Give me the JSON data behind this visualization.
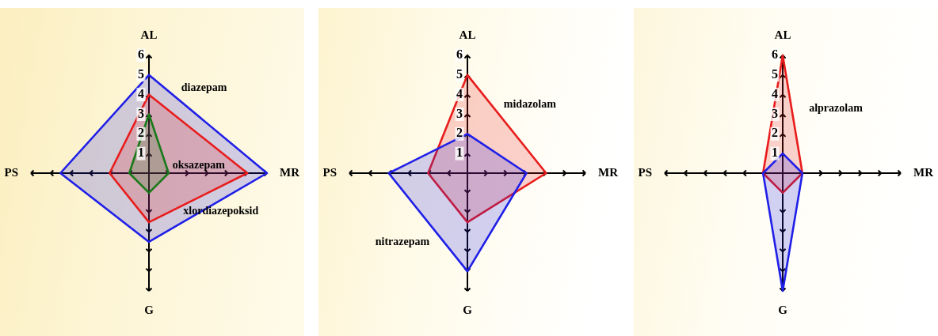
{
  "chart_data": [
    {
      "type": "radar",
      "categories": [
        "AL",
        "MR",
        "G",
        "PS"
      ],
      "series": [
        {
          "name": "diazepam",
          "color": "#1f1fe8",
          "values": [
            5,
            6,
            3.5,
            4.5
          ]
        },
        {
          "name": "xlordiazepoksid",
          "color": "#e81c1c",
          "values": [
            4,
            5,
            2.5,
            2
          ]
        },
        {
          "name": "oksazepam",
          "color": "#1a7a1a",
          "values": [
            3,
            1,
            1,
            1
          ]
        }
      ],
      "ylim": [
        0,
        6
      ],
      "yticks": [
        1,
        2,
        3,
        4,
        5,
        6
      ],
      "marker": "none"
    },
    {
      "type": "radar",
      "categories": [
        "AL",
        "MR",
        "G",
        "PS"
      ],
      "series": [
        {
          "name": "midazolam",
          "color": "#e81c1c",
          "values": [
            5,
            4,
            2.5,
            2
          ]
        },
        {
          "name": "nitrazepam",
          "color": "#1f1fe8",
          "values": [
            2,
            3,
            5,
            4
          ]
        }
      ],
      "ylim": [
        0,
        6
      ],
      "yticks": [
        1,
        2,
        3,
        4,
        5,
        6
      ],
      "marker": "none"
    },
    {
      "type": "radar",
      "categories": [
        "AL",
        "MR",
        "G",
        "PS"
      ],
      "series": [
        {
          "name": "alprazolam",
          "color": "#e81c1c",
          "values": [
            6,
            1,
            1,
            1
          ]
        },
        {
          "color": "#1f1fe8",
          "values": [
            1,
            1,
            6,
            1
          ]
        }
      ],
      "ylim": [
        0,
        6
      ],
      "yticks": [
        1,
        2,
        3,
        4,
        5,
        6
      ],
      "marker": "none"
    }
  ]
}
